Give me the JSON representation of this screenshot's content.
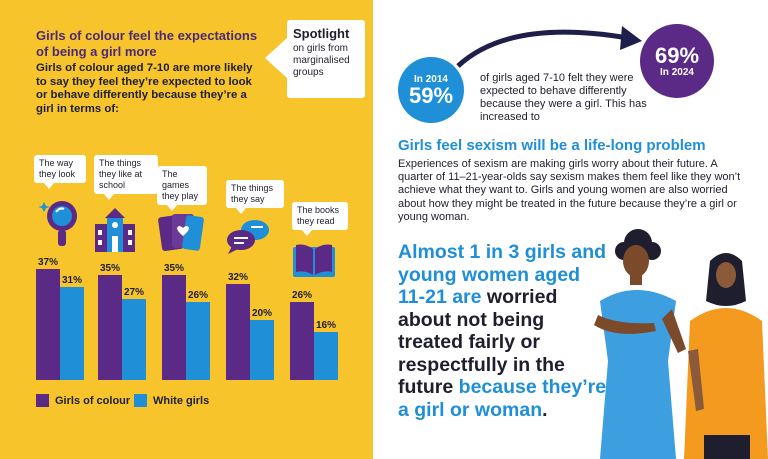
{
  "left": {
    "title": "Girls of colour feel the expectations of being a girl more",
    "body": "Girls of colour aged 7-10 are more likely to say they feel they’re expected to look or behave differently because they’re a girl in terms of:",
    "spotlight_title": "Spotlight",
    "spotlight_sub": "on girls from marginalised groups"
  },
  "colors": {
    "girls_of_colour": "#5b2a86",
    "white_girls": "#1f8fd8",
    "left_background": "#f7c52b"
  },
  "chart_data": {
    "type": "bar",
    "categories": [
      "The way they look",
      "The things they like at school",
      "The games they play",
      "The things they say",
      "The books they read"
    ],
    "category_icons": [
      "mirror-icon",
      "school-icon",
      "playing-cards-icon",
      "speech-bubbles-icon",
      "open-book-icon"
    ],
    "series": [
      {
        "name": "Girls of colour",
        "values": [
          37,
          35,
          35,
          32,
          26
        ],
        "labels": [
          "37%",
          "35%",
          "35%",
          "32%",
          "26%"
        ]
      },
      {
        "name": "White girls",
        "values": [
          31,
          27,
          26,
          20,
          16
        ],
        "labels": [
          "31%",
          "27%",
          "26%",
          "20%",
          "16%"
        ]
      }
    ],
    "ylim": [
      0,
      40
    ],
    "grid": false,
    "legend": "bottom-left",
    "title": "",
    "xlabel": "",
    "ylabel": ""
  },
  "right": {
    "year_2014": "In 2014",
    "pct_2014": "59%",
    "year_2024": "In 2024",
    "pct_2024": "69%",
    "stat_text": "of girls aged 7-10 felt they were expected to behave differently because they were a girl. This has increased to",
    "heading": "Girls feel sexism will be a life-long problem",
    "body": "Experiences of sexism are making girls worry about their future. A quarter of 11–21-year-olds say sexism makes them feel like they won’t achieve what they want to. Girls and young women are also worried about how they might be treated in the future because they’re a girl or young woman.",
    "callout_main": "Almost 1 in 3 girls and young women aged 11-21 are",
    "callout_dark": "worried about not being treated fairly or respectfully in the future",
    "callout_blue": "because they’re a girl or woman",
    "callout_dot": "."
  }
}
